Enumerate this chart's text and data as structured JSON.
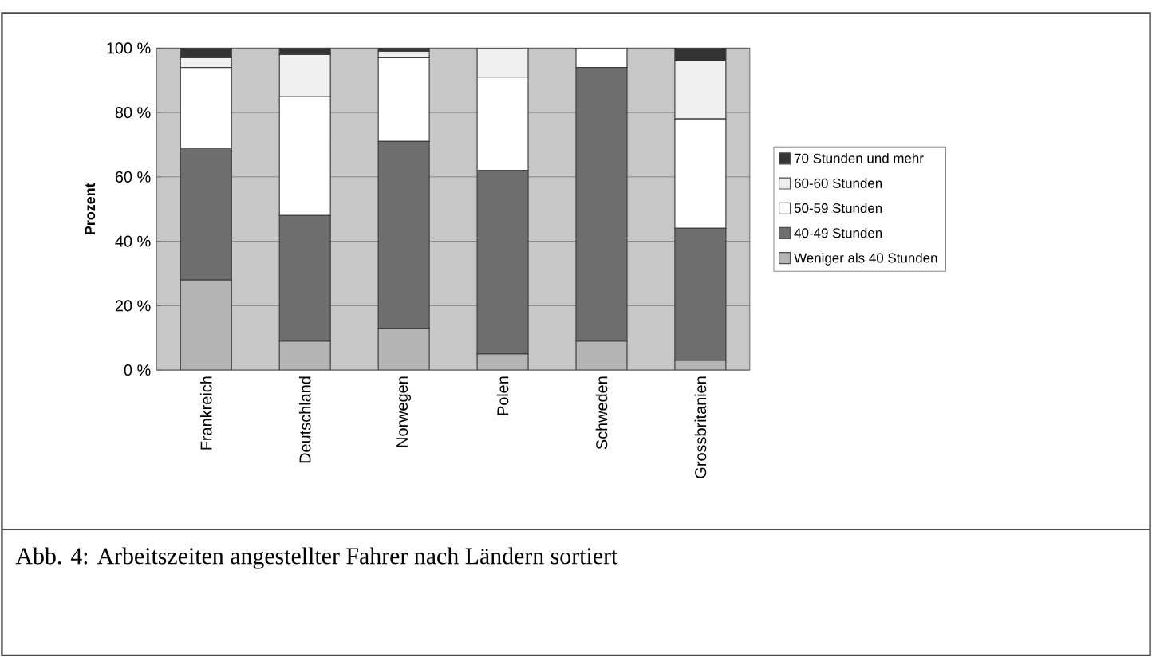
{
  "chart_data": {
    "type": "bar",
    "stacked": true,
    "ylabel": "Prozent",
    "categories": [
      "Frankreich",
      "Deutschland",
      "Norwegen",
      "Polen",
      "Schweden",
      "Grossbritanien"
    ],
    "series": [
      {
        "name": "Weniger als 40 Stunden",
        "color": "#b4b4b4",
        "values": [
          28,
          9,
          13,
          5,
          9,
          3
        ]
      },
      {
        "name": "40-49 Stunden",
        "color": "#6e6e6e",
        "values": [
          41,
          39,
          58,
          57,
          85,
          41
        ]
      },
      {
        "name": "50-59 Stunden",
        "color": "#ffffff",
        "values": [
          25,
          37,
          26,
          29,
          6,
          34
        ]
      },
      {
        "name": "60-60 Stunden",
        "color": "#f0f0f0",
        "values": [
          3,
          13,
          2,
          9,
          0,
          18
        ]
      },
      {
        "name": "70 Stunden und mehr",
        "color": "#333333",
        "values": [
          3,
          2,
          1,
          0,
          0,
          4
        ]
      }
    ],
    "ylim": [
      0,
      100
    ],
    "yticks": [
      {
        "value": 0,
        "label": "0 %"
      },
      {
        "value": 20,
        "label": "20 %"
      },
      {
        "value": 40,
        "label": "40 %"
      },
      {
        "value": 60,
        "label": "60 %"
      },
      {
        "value": 80,
        "label": "80 %"
      },
      {
        "value": 100,
        "label": "100 %"
      }
    ],
    "grid": "y",
    "legend": "right",
    "annotations": [
      "Abb. 4: Arbeitszeiten angestellter Fahrer nach Ländern sortiert"
    ]
  }
}
